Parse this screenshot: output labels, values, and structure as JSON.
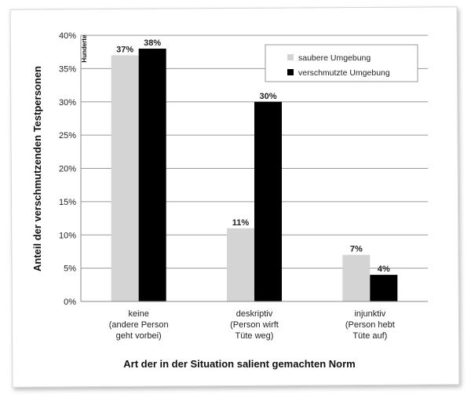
{
  "chart_data": {
    "type": "bar",
    "categories": [
      [
        "keine",
        "(andere Person",
        "geht vorbei)"
      ],
      [
        "deskriptiv",
        "(Person wirft",
        "Tüte weg)"
      ],
      [
        "injunktiv",
        "(Person hebt",
        "Tüte auf)"
      ]
    ],
    "series": [
      {
        "name": "saubere Umgebung",
        "values": [
          37,
          11,
          7
        ],
        "color": "#d4d4d4",
        "data_labels": [
          "37%",
          "11%",
          "7%"
        ]
      },
      {
        "name": "verschmutzte Umgebung",
        "values": [
          38,
          30,
          4
        ],
        "color": "#000000",
        "data_labels": [
          "38%",
          "30%",
          "4%"
        ]
      }
    ],
    "ylim": [
      0,
      40
    ],
    "y_ticks": [
      0,
      5,
      10,
      15,
      20,
      25,
      30,
      35,
      40
    ],
    "y_tick_labels": [
      "0%",
      "5%",
      "10%",
      "15%",
      "20%",
      "25%",
      "30%",
      "35%",
      "40%"
    ],
    "xlabel": "Art der in der Situation salient gemachten Norm",
    "ylabel": "Anteil der verschmutzenden Testpersonen",
    "y_corner_label": "Hunderte",
    "grid": true,
    "legend_position": "top-right"
  }
}
